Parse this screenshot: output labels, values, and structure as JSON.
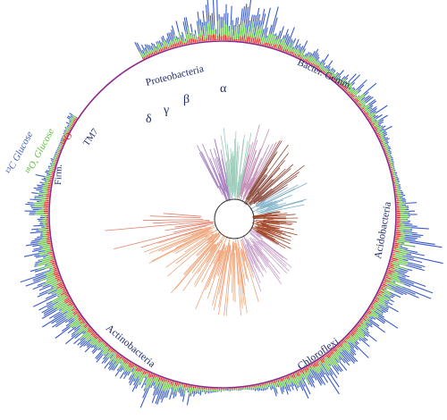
{
  "figure": {
    "ring_labels": {
      "c13": "¹³C Glucose",
      "o18_glucose": "¹⁸O, Glucose",
      "o18": "¹⁸O"
    },
    "phyla": [
      {
        "id": "tm7",
        "label": "TM7"
      },
      {
        "id": "proteobacteria",
        "label": "Proteobacteria"
      },
      {
        "id": "bacter-gemm",
        "label": "Bacter. Gemm."
      },
      {
        "id": "acidobacteria",
        "label": "Acidobacteria"
      },
      {
        "id": "chloroflexi",
        "label": "Chloroflexi"
      },
      {
        "id": "actinobacteria",
        "label": "Actinobacteria"
      },
      {
        "id": "firmicutes",
        "label": "Firm."
      }
    ],
    "proteo_classes": {
      "delta": "δ",
      "gamma": "γ",
      "beta": "β",
      "alpha": "α"
    },
    "colors": {
      "c13_ring": "#3a5bc7",
      "o18_glucose_ring": "#5cc23c",
      "o18_ring": "#e8231d",
      "inner_ring": "#8a2a8a",
      "label_text": "#1e2b6b",
      "proteo_alpha": "#8b4a3c",
      "proteo_beta": "#c48fb8",
      "proteo_gamma": "#9dccba",
      "proteo_delta": "#a77fbf",
      "actino_branches": "#f0a57a",
      "acido_branches": "#a34a2c",
      "chloro_branches": "#c8a0c8",
      "firm_branches": "#e3806a",
      "bacter_branches": "#7fb0c8"
    }
  }
}
